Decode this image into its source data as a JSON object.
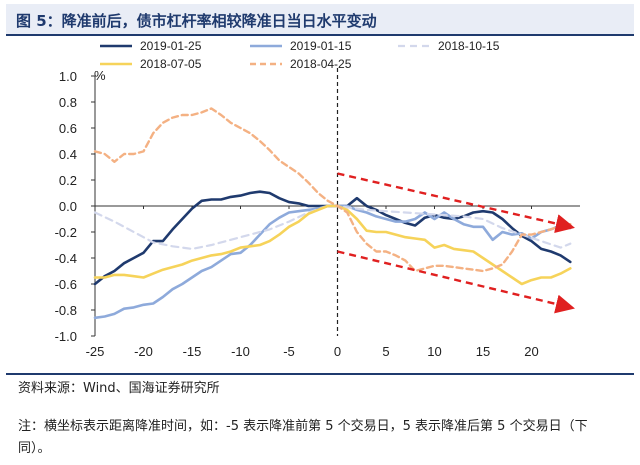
{
  "title": "图 5：降准前后，债市杠杆率相较降准日当日水平变动",
  "source": "资料来源：Wind、国海证券研究所",
  "note": "注：横坐标表示距离降准时间，如：-5 表示降准前第 5 个交易日，5 表示降准后第 5 个交易日（下同）。",
  "chart_data": {
    "type": "line",
    "ylabel": "%",
    "xlim": [
      -25,
      25
    ],
    "ylim": [
      -1.0,
      1.0
    ],
    "x_ticks": [
      -25,
      -20,
      -15,
      -10,
      -5,
      0,
      5,
      10,
      15,
      20
    ],
    "y_ticks": [
      1.0,
      0.8,
      0.6,
      0.4,
      0.2,
      0.0,
      -0.2,
      -0.4,
      -0.6,
      -0.8,
      -1.0
    ],
    "y_tick_labels": [
      "1.0",
      "0.8",
      "0.6",
      "0.4",
      "0.2",
      "0.0",
      "-0.2",
      "-0.4",
      "-0.6",
      "-0.8",
      "-1.0"
    ],
    "vertical_line_at": 0,
    "trend_arrows": [
      {
        "from": [
          0,
          0.25
        ],
        "to": [
          24,
          -0.16
        ],
        "color": "#e02020"
      },
      {
        "from": [
          0,
          -0.35
        ],
        "to": [
          24,
          -0.78
        ],
        "color": "#e02020"
      }
    ],
    "series": [
      {
        "name": "2019-01-25",
        "color": "#1f3a6e",
        "dash": "",
        "width": 2.6,
        "points": [
          [
            -25,
            -0.6
          ],
          [
            -24,
            -0.54
          ],
          [
            -23,
            -0.5
          ],
          [
            -22,
            -0.44
          ],
          [
            -21,
            -0.4
          ],
          [
            -20,
            -0.36
          ],
          [
            -19,
            -0.27
          ],
          [
            -18,
            -0.27
          ],
          [
            -17,
            -0.18
          ],
          [
            -16,
            -0.1
          ],
          [
            -15,
            -0.02
          ],
          [
            -14,
            0.04
          ],
          [
            -13,
            0.05
          ],
          [
            -12,
            0.05
          ],
          [
            -11,
            0.07
          ],
          [
            -10,
            0.08
          ],
          [
            -9,
            0.1
          ],
          [
            -8,
            0.11
          ],
          [
            -7,
            0.1
          ],
          [
            -6,
            0.06
          ],
          [
            -5,
            0.03
          ],
          [
            -4,
            0.02
          ],
          [
            -3,
            0.0
          ],
          [
            -2,
            0.0
          ],
          [
            -1,
            0.0
          ],
          [
            0,
            0.0
          ],
          [
            1,
            0.0
          ],
          [
            2,
            0.06
          ],
          [
            3,
            0.0
          ],
          [
            4,
            -0.03
          ],
          [
            5,
            -0.07
          ],
          [
            6,
            -0.1
          ],
          [
            7,
            -0.13
          ],
          [
            8,
            -0.15
          ],
          [
            9,
            -0.09
          ],
          [
            10,
            -0.07
          ],
          [
            11,
            -0.09
          ],
          [
            12,
            -0.1
          ],
          [
            13,
            -0.08
          ],
          [
            14,
            -0.05
          ],
          [
            15,
            -0.04
          ],
          [
            16,
            -0.05
          ],
          [
            17,
            -0.1
          ],
          [
            18,
            -0.17
          ],
          [
            19,
            -0.23
          ],
          [
            20,
            -0.27
          ],
          [
            21,
            -0.33
          ],
          [
            22,
            -0.35
          ],
          [
            23,
            -0.38
          ],
          [
            24,
            -0.43
          ]
        ]
      },
      {
        "name": "2019-01-15",
        "color": "#8eaadb",
        "dash": "",
        "width": 2.6,
        "points": [
          [
            -25,
            -0.86
          ],
          [
            -24,
            -0.85
          ],
          [
            -23,
            -0.83
          ],
          [
            -22,
            -0.79
          ],
          [
            -21,
            -0.78
          ],
          [
            -20,
            -0.76
          ],
          [
            -19,
            -0.75
          ],
          [
            -18,
            -0.7
          ],
          [
            -17,
            -0.64
          ],
          [
            -16,
            -0.6
          ],
          [
            -15,
            -0.55
          ],
          [
            -14,
            -0.5
          ],
          [
            -13,
            -0.47
          ],
          [
            -12,
            -0.42
          ],
          [
            -11,
            -0.37
          ],
          [
            -10,
            -0.36
          ],
          [
            -9,
            -0.3
          ],
          [
            -8,
            -0.22
          ],
          [
            -7,
            -0.14
          ],
          [
            -6,
            -0.09
          ],
          [
            -5,
            -0.05
          ],
          [
            -4,
            -0.04
          ],
          [
            -3,
            -0.03
          ],
          [
            -2,
            -0.02
          ],
          [
            -1,
            0.0
          ],
          [
            0,
            0.0
          ],
          [
            1,
            0.0
          ],
          [
            2,
            -0.03
          ],
          [
            3,
            -0.05
          ],
          [
            4,
            -0.08
          ],
          [
            5,
            -0.1
          ],
          [
            6,
            -0.12
          ],
          [
            7,
            -0.12
          ],
          [
            8,
            -0.1
          ],
          [
            9,
            -0.05
          ],
          [
            10,
            -0.1
          ],
          [
            11,
            -0.05
          ],
          [
            12,
            -0.1
          ],
          [
            13,
            -0.14
          ],
          [
            14,
            -0.16
          ],
          [
            15,
            -0.16
          ],
          [
            16,
            -0.26
          ],
          [
            17,
            -0.2
          ],
          [
            18,
            -0.22
          ],
          [
            19,
            -0.21
          ],
          [
            20,
            -0.25
          ],
          [
            21,
            -0.2
          ],
          [
            22,
            -0.18
          ],
          [
            23,
            -0.15
          ],
          [
            24,
            -0.17
          ]
        ]
      },
      {
        "name": "2018-10-15",
        "color": "#d3d8ec",
        "dash": "7,5",
        "width": 2.2,
        "points": [
          [
            -25,
            -0.05
          ],
          [
            -23,
            -0.12
          ],
          [
            -21,
            -0.2
          ],
          [
            -19,
            -0.28
          ],
          [
            -17,
            -0.31
          ],
          [
            -15,
            -0.33
          ],
          [
            -13,
            -0.3
          ],
          [
            -11,
            -0.26
          ],
          [
            -9,
            -0.22
          ],
          [
            -7,
            -0.18
          ],
          [
            -5,
            -0.12
          ],
          [
            -3,
            -0.05
          ],
          [
            -1,
            0.0
          ],
          [
            0,
            0.0
          ],
          [
            1,
            -0.01
          ],
          [
            3,
            -0.03
          ],
          [
            5,
            -0.04
          ],
          [
            7,
            -0.05
          ],
          [
            9,
            -0.06
          ],
          [
            11,
            -0.07
          ],
          [
            13,
            -0.08
          ],
          [
            15,
            -0.1
          ],
          [
            17,
            -0.17
          ],
          [
            19,
            -0.22
          ],
          [
            21,
            -0.27
          ],
          [
            23,
            -0.32
          ],
          [
            24,
            -0.29
          ]
        ]
      },
      {
        "name": "2018-07-05",
        "color": "#f6d35a",
        "dash": "",
        "width": 2.6,
        "points": [
          [
            -25,
            -0.55
          ],
          [
            -24,
            -0.55
          ],
          [
            -23,
            -0.53
          ],
          [
            -22,
            -0.53
          ],
          [
            -21,
            -0.54
          ],
          [
            -20,
            -0.55
          ],
          [
            -19,
            -0.52
          ],
          [
            -18,
            -0.49
          ],
          [
            -17,
            -0.47
          ],
          [
            -16,
            -0.45
          ],
          [
            -15,
            -0.42
          ],
          [
            -14,
            -0.4
          ],
          [
            -13,
            -0.38
          ],
          [
            -12,
            -0.37
          ],
          [
            -11,
            -0.35
          ],
          [
            -10,
            -0.32
          ],
          [
            -9,
            -0.31
          ],
          [
            -8,
            -0.3
          ],
          [
            -7,
            -0.27
          ],
          [
            -6,
            -0.22
          ],
          [
            -5,
            -0.16
          ],
          [
            -4,
            -0.12
          ],
          [
            -3,
            -0.06
          ],
          [
            -2,
            -0.03
          ],
          [
            -1,
            0.0
          ],
          [
            0,
            0.0
          ],
          [
            1,
            -0.03
          ],
          [
            2,
            -0.1
          ],
          [
            3,
            -0.19
          ],
          [
            4,
            -0.2
          ],
          [
            5,
            -0.2
          ],
          [
            6,
            -0.22
          ],
          [
            7,
            -0.24
          ],
          [
            8,
            -0.25
          ],
          [
            9,
            -0.26
          ],
          [
            10,
            -0.32
          ],
          [
            11,
            -0.3
          ],
          [
            12,
            -0.33
          ],
          [
            13,
            -0.34
          ],
          [
            14,
            -0.35
          ],
          [
            15,
            -0.4
          ],
          [
            16,
            -0.45
          ],
          [
            17,
            -0.5
          ],
          [
            18,
            -0.55
          ],
          [
            19,
            -0.6
          ],
          [
            20,
            -0.57
          ],
          [
            21,
            -0.55
          ],
          [
            22,
            -0.55
          ],
          [
            23,
            -0.52
          ],
          [
            24,
            -0.48
          ]
        ]
      },
      {
        "name": "2018-04-25",
        "color": "#f4b183",
        "dash": "6,4",
        "width": 2.4,
        "points": [
          [
            -25,
            0.42
          ],
          [
            -24,
            0.4
          ],
          [
            -23,
            0.34
          ],
          [
            -22,
            0.4
          ],
          [
            -21,
            0.4
          ],
          [
            -20,
            0.42
          ],
          [
            -19,
            0.56
          ],
          [
            -18,
            0.64
          ],
          [
            -17,
            0.68
          ],
          [
            -16,
            0.7
          ],
          [
            -15,
            0.7
          ],
          [
            -14,
            0.72
          ],
          [
            -13,
            0.75
          ],
          [
            -12,
            0.7
          ],
          [
            -11,
            0.64
          ],
          [
            -10,
            0.6
          ],
          [
            -9,
            0.56
          ],
          [
            -8,
            0.5
          ],
          [
            -7,
            0.43
          ],
          [
            -6,
            0.35
          ],
          [
            -5,
            0.3
          ],
          [
            -4,
            0.25
          ],
          [
            -3,
            0.18
          ],
          [
            -2,
            0.1
          ],
          [
            -1,
            0.04
          ],
          [
            0,
            0.0
          ],
          [
            1,
            -0.05
          ],
          [
            2,
            -0.2
          ],
          [
            3,
            -0.29
          ],
          [
            4,
            -0.35
          ],
          [
            5,
            -0.35
          ],
          [
            6,
            -0.38
          ],
          [
            7,
            -0.42
          ],
          [
            8,
            -0.5
          ],
          [
            9,
            -0.48
          ],
          [
            10,
            -0.46
          ],
          [
            11,
            -0.46
          ],
          [
            12,
            -0.47
          ],
          [
            13,
            -0.48
          ],
          [
            14,
            -0.49
          ],
          [
            15,
            -0.5
          ],
          [
            16,
            -0.48
          ],
          [
            17,
            -0.45
          ],
          [
            18,
            -0.35
          ],
          [
            19,
            -0.22
          ],
          [
            20,
            -0.22
          ],
          [
            21,
            -0.2
          ],
          [
            22,
            -0.18
          ],
          [
            23,
            -0.15
          ],
          [
            24,
            -0.14
          ]
        ]
      }
    ]
  }
}
